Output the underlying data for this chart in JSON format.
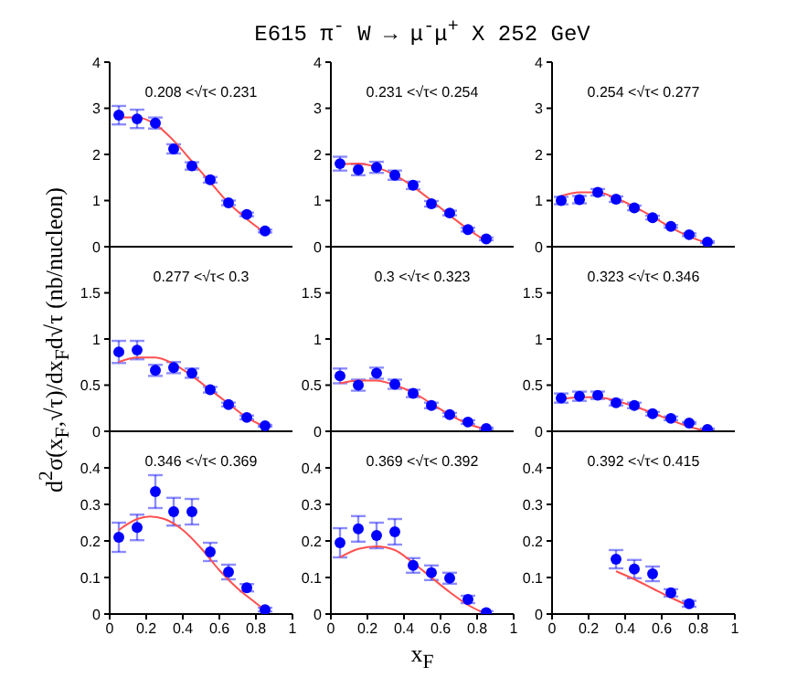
{
  "chart_data": [
    {
      "type": "scatter",
      "title": "E615 π$^{-}$ W → μ$^{-}$μ$^{+}$ X  252 GeV",
      "annotations": [
        "0.208 <√τ< 0.231"
      ],
      "xlim": [
        0,
        1
      ],
      "xticks": [
        0,
        0.2,
        0.4,
        0.6,
        0.8,
        1
      ],
      "ylim": [
        0,
        4
      ],
      "yticks": [
        0,
        1,
        2,
        3,
        4
      ],
      "tick_labels": "y",
      "series": [
        {
          "color": "#0000ff",
          "marker": "circle",
          "x": [
            0.05,
            0.15,
            0.25,
            0.35,
            0.45,
            0.55,
            0.65,
            0.75,
            0.85
          ],
          "values": [
            2.85,
            2.77,
            2.68,
            2.12,
            1.75,
            1.45,
            0.95,
            0.7,
            0.34
          ],
          "errors": [
            0.2,
            0.2,
            0.12,
            0.1,
            0.08,
            0.06,
            0.05,
            0.04,
            0.03
          ]
        },
        {
          "type": "line",
          "marker": "none",
          "line_style": "solid",
          "color": "#ff5050",
          "x": [
            0.05,
            0.15,
            0.25,
            0.35,
            0.45,
            0.55,
            0.65,
            0.75,
            0.85
          ],
          "values": [
            2.8,
            2.8,
            2.65,
            2.3,
            1.85,
            1.4,
            0.95,
            0.6,
            0.3
          ]
        }
      ]
    },
    {
      "type": "scatter",
      "annotations": [
        "0.231 <√τ< 0.254"
      ],
      "xlim": [
        0,
        1
      ],
      "xticks": [
        0,
        0.2,
        0.4,
        0.6,
        0.8,
        1
      ],
      "ylim": [
        0,
        4
      ],
      "yticks": [
        0,
        1,
        2,
        3,
        4
      ],
      "tick_labels": "y",
      "series": [
        {
          "color": "#0000ff",
          "marker": "circle",
          "x": [
            0.05,
            0.15,
            0.25,
            0.35,
            0.45,
            0.55,
            0.65,
            0.75,
            0.85
          ],
          "values": [
            1.8,
            1.67,
            1.72,
            1.55,
            1.33,
            0.93,
            0.73,
            0.37,
            0.17
          ],
          "errors": [
            0.15,
            0.12,
            0.12,
            0.1,
            0.08,
            0.06,
            0.05,
            0.04,
            0.03
          ]
        },
        {
          "type": "line",
          "marker": "none",
          "line_style": "solid",
          "color": "#ff5050",
          "x": [
            0.05,
            0.15,
            0.25,
            0.35,
            0.45,
            0.55,
            0.65,
            0.75,
            0.85
          ],
          "values": [
            1.78,
            1.8,
            1.72,
            1.55,
            1.3,
            1.0,
            0.68,
            0.38,
            0.12
          ]
        }
      ]
    },
    {
      "type": "scatter",
      "annotations": [
        "0.254 <√τ< 0.277"
      ],
      "xlim": [
        0,
        1
      ],
      "xticks": [
        0,
        0.2,
        0.4,
        0.6,
        0.8,
        1
      ],
      "ylim": [
        0,
        4
      ],
      "yticks": [
        0,
        1,
        2,
        3,
        4
      ],
      "tick_labels": "y",
      "series": [
        {
          "color": "#0000ff",
          "marker": "circle",
          "x": [
            0.05,
            0.15,
            0.25,
            0.35,
            0.45,
            0.55,
            0.65,
            0.75,
            0.85
          ],
          "values": [
            1.0,
            1.02,
            1.18,
            1.03,
            0.84,
            0.63,
            0.44,
            0.26,
            0.1
          ],
          "errors": [
            0.08,
            0.08,
            0.07,
            0.06,
            0.05,
            0.04,
            0.03,
            0.03,
            0.02
          ]
        },
        {
          "type": "line",
          "marker": "none",
          "line_style": "solid",
          "color": "#ff5050",
          "x": [
            0.05,
            0.15,
            0.25,
            0.35,
            0.45,
            0.55,
            0.65,
            0.75,
            0.85
          ],
          "values": [
            1.1,
            1.18,
            1.18,
            1.05,
            0.87,
            0.65,
            0.42,
            0.22,
            0.08
          ]
        }
      ]
    },
    {
      "type": "scatter",
      "ylabel": "d$^{2}$σ(x$_{F}$,√τ)/dx$_{F}$d√τ (nb/nucleon)",
      "annotations": [
        "0.277 <√τ< 0.3"
      ],
      "xlim": [
        0,
        1
      ],
      "xticks": [
        0,
        0.2,
        0.4,
        0.6,
        0.8,
        1
      ],
      "ylim": [
        0,
        2
      ],
      "yticks": [
        0,
        0.5,
        1,
        1.5
      ],
      "tick_labels": "y",
      "series": [
        {
          "color": "#0000ff",
          "marker": "circle",
          "x": [
            0.05,
            0.15,
            0.25,
            0.35,
            0.45,
            0.55,
            0.65,
            0.75,
            0.85
          ],
          "values": [
            0.86,
            0.88,
            0.66,
            0.69,
            0.63,
            0.45,
            0.29,
            0.15,
            0.06
          ],
          "errors": [
            0.12,
            0.1,
            0.06,
            0.06,
            0.05,
            0.03,
            0.02,
            0.02,
            0.01
          ]
        },
        {
          "type": "line",
          "marker": "none",
          "line_style": "solid",
          "color": "#ff5050",
          "x": [
            0.05,
            0.15,
            0.25,
            0.35,
            0.45,
            0.55,
            0.65,
            0.75,
            0.85
          ],
          "values": [
            0.75,
            0.8,
            0.8,
            0.73,
            0.6,
            0.45,
            0.3,
            0.15,
            0.05
          ]
        }
      ]
    },
    {
      "type": "scatter",
      "annotations": [
        "0.3 <√τ< 0.323"
      ],
      "xlim": [
        0,
        1
      ],
      "xticks": [
        0,
        0.2,
        0.4,
        0.6,
        0.8,
        1
      ],
      "ylim": [
        0,
        2
      ],
      "yticks": [
        0,
        0.5,
        1,
        1.5
      ],
      "tick_labels": "y",
      "series": [
        {
          "color": "#0000ff",
          "marker": "circle",
          "x": [
            0.05,
            0.15,
            0.25,
            0.35,
            0.45,
            0.55,
            0.65,
            0.75,
            0.85
          ],
          "values": [
            0.6,
            0.5,
            0.63,
            0.51,
            0.41,
            0.28,
            0.18,
            0.1,
            0.03
          ],
          "errors": [
            0.08,
            0.06,
            0.06,
            0.05,
            0.04,
            0.03,
            0.02,
            0.02,
            0.01
          ]
        },
        {
          "type": "line",
          "marker": "none",
          "line_style": "solid",
          "color": "#ff5050",
          "x": [
            0.05,
            0.15,
            0.25,
            0.35,
            0.45,
            0.55,
            0.65,
            0.75,
            0.85
          ],
          "values": [
            0.52,
            0.55,
            0.55,
            0.5,
            0.42,
            0.3,
            0.18,
            0.08,
            0.02
          ]
        }
      ]
    },
    {
      "type": "scatter",
      "annotations": [
        "0.323 <√τ< 0.346"
      ],
      "xlim": [
        0,
        1
      ],
      "xticks": [
        0,
        0.2,
        0.4,
        0.6,
        0.8,
        1
      ],
      "ylim": [
        0,
        2
      ],
      "yticks": [
        0,
        0.5,
        1,
        1.5
      ],
      "tick_labels": "y",
      "series": [
        {
          "color": "#0000ff",
          "marker": "circle",
          "x": [
            0.05,
            0.15,
            0.25,
            0.35,
            0.45,
            0.55,
            0.65,
            0.75,
            0.85
          ],
          "values": [
            0.36,
            0.38,
            0.39,
            0.31,
            0.28,
            0.19,
            0.14,
            0.09,
            0.02
          ],
          "errors": [
            0.05,
            0.05,
            0.04,
            0.03,
            0.03,
            0.02,
            0.02,
            0.01,
            0.01
          ]
        },
        {
          "type": "line",
          "marker": "none",
          "line_style": "solid",
          "color": "#ff5050",
          "x": [
            0.05,
            0.15,
            0.25,
            0.35,
            0.45,
            0.55,
            0.65,
            0.75,
            0.85
          ],
          "values": [
            0.35,
            0.37,
            0.37,
            0.33,
            0.27,
            0.2,
            0.12,
            0.05,
            0.0
          ]
        }
      ]
    },
    {
      "type": "scatter",
      "annotations": [
        "0.346 <√τ< 0.369"
      ],
      "xlim": [
        0,
        1
      ],
      "xticks": [
        0,
        0.2,
        0.4,
        0.6,
        0.8,
        1
      ],
      "ylim": [
        0,
        0.5
      ],
      "yticks": [
        0,
        0.1,
        0.2,
        0.3,
        0.4
      ],
      "series": [
        {
          "color": "#0000ff",
          "marker": "circle",
          "x": [
            0.05,
            0.15,
            0.25,
            0.35,
            0.45,
            0.55,
            0.65,
            0.75,
            0.85
          ],
          "values": [
            0.21,
            0.237,
            0.335,
            0.28,
            0.28,
            0.17,
            0.115,
            0.072,
            0.012
          ],
          "errors": [
            0.04,
            0.035,
            0.045,
            0.038,
            0.035,
            0.025,
            0.02,
            0.01,
            0.005
          ]
        },
        {
          "type": "line",
          "marker": "none",
          "line_style": "solid",
          "color": "#ff5050",
          "x": [
            0.05,
            0.15,
            0.22,
            0.3,
            0.4,
            0.5,
            0.6,
            0.7,
            0.8,
            0.85
          ],
          "values": [
            0.23,
            0.26,
            0.267,
            0.26,
            0.23,
            0.18,
            0.12,
            0.07,
            0.03,
            0.01
          ]
        }
      ]
    },
    {
      "type": "scatter",
      "xlabel": "x$_{F}$",
      "annotations": [
        "0.369 <√τ< 0.392"
      ],
      "xlim": [
        0,
        1
      ],
      "xticks": [
        0,
        0.2,
        0.4,
        0.6,
        0.8,
        1
      ],
      "ylim": [
        0,
        0.5
      ],
      "yticks": [
        0,
        0.1,
        0.2,
        0.3,
        0.4
      ],
      "series": [
        {
          "color": "#0000ff",
          "marker": "circle",
          "x": [
            0.05,
            0.15,
            0.25,
            0.35,
            0.45,
            0.55,
            0.65,
            0.75,
            0.85
          ],
          "values": [
            0.195,
            0.233,
            0.215,
            0.225,
            0.133,
            0.113,
            0.098,
            0.04,
            0.004
          ],
          "errors": [
            0.04,
            0.035,
            0.035,
            0.035,
            0.02,
            0.02,
            0.015,
            0.01,
            0.004
          ]
        },
        {
          "type": "line",
          "marker": "none",
          "line_style": "solid",
          "color": "#ff5050",
          "x": [
            0.05,
            0.15,
            0.25,
            0.35,
            0.45,
            0.55,
            0.65,
            0.75,
            0.85
          ],
          "values": [
            0.155,
            0.178,
            0.185,
            0.175,
            0.14,
            0.1,
            0.06,
            0.025,
            0.0
          ]
        }
      ]
    },
    {
      "type": "scatter",
      "annotations": [
        "0.392 <√τ< 0.415"
      ],
      "xlim": [
        0,
        1
      ],
      "xticks": [
        0,
        0.2,
        0.4,
        0.6,
        0.8,
        1
      ],
      "ylim": [
        0,
        0.5
      ],
      "yticks": [
        0,
        0.1,
        0.2,
        0.3,
        0.4
      ],
      "series": [
        {
          "color": "#0000ff",
          "marker": "circle",
          "x": [
            0.35,
            0.45,
            0.55,
            0.65,
            0.75
          ],
          "values": [
            0.15,
            0.123,
            0.11,
            0.058,
            0.028
          ],
          "errors": [
            0.025,
            0.025,
            0.02,
            0.01,
            0.008
          ]
        },
        {
          "type": "line",
          "marker": "none",
          "line_style": "solid",
          "color": "#ff5050",
          "x": [
            0.35,
            0.45,
            0.55,
            0.65,
            0.75
          ],
          "values": [
            0.117,
            0.095,
            0.07,
            0.045,
            0.022
          ]
        }
      ]
    }
  ]
}
